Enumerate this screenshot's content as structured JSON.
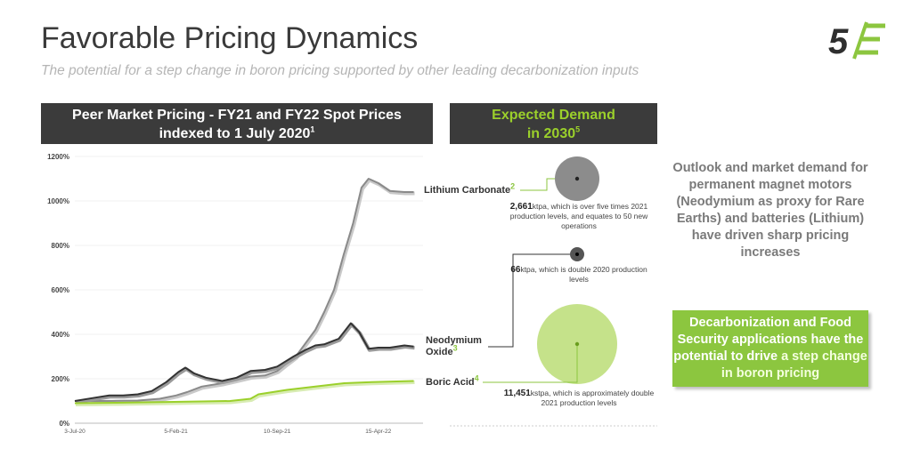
{
  "page": {
    "title": "Favorable Pricing Dynamics",
    "subtitle": "The potential for a step change in boron pricing supported by other leading decarbonization inputs",
    "logo_text": "5E"
  },
  "colors": {
    "accent_green": "#8cc63f",
    "header_bg": "#3b3b3b",
    "lithium": "#8a8a8a",
    "neodymium": "#333333",
    "boric": "#9bd02b"
  },
  "chart_header": {
    "line1": "Peer Market Pricing - FY21 and FY22 Spot Prices",
    "line2": "indexed to 1 July 2020",
    "sup": "1"
  },
  "demand_header": {
    "line1": "Expected Demand",
    "line2": "in 2030",
    "sup": "5"
  },
  "chart_data": {
    "type": "line",
    "ylim": [
      0,
      1200
    ],
    "yticks": [
      "0%",
      "200%",
      "400%",
      "600%",
      "800%",
      "1000%",
      "1200%"
    ],
    "xticks": [
      "3-Jul-20",
      "5-Feb-21",
      "10-Sep-21",
      "15-Apr-22"
    ],
    "series": [
      {
        "name": "Lithium Carbonate",
        "sup": "2",
        "x": [
          "2020-07-03",
          "2020-08-15",
          "2020-10-01",
          "2020-11-15",
          "2021-01-01",
          "2021-02-05",
          "2021-03-01",
          "2021-04-01",
          "2021-05-15",
          "2021-06-15",
          "2021-07-15",
          "2021-08-15",
          "2021-09-10",
          "2021-10-01",
          "2021-10-20",
          "2021-11-10",
          "2021-12-01",
          "2021-12-20",
          "2022-01-10",
          "2022-01-31",
          "2022-02-20",
          "2022-03-10",
          "2022-03-25",
          "2022-04-15",
          "2022-05-10",
          "2022-06-10",
          "2022-06-30"
        ],
        "values": [
          100,
          100,
          101,
          102,
          110,
          125,
          140,
          165,
          180,
          195,
          210,
          215,
          235,
          270,
          300,
          360,
          420,
          500,
          600,
          760,
          900,
          1060,
          1100,
          1080,
          1045,
          1040,
          1040
        ]
      },
      {
        "name": "Neodymium Oxide",
        "sup": "3",
        "x": [
          "2020-07-03",
          "2020-08-15",
          "2020-09-15",
          "2020-10-15",
          "2020-11-15",
          "2020-12-15",
          "2021-01-15",
          "2021-02-10",
          "2021-02-25",
          "2021-03-15",
          "2021-04-10",
          "2021-05-15",
          "2021-06-15",
          "2021-07-15",
          "2021-08-15",
          "2021-09-10",
          "2021-10-15",
          "2021-11-10",
          "2021-12-01",
          "2021-12-20",
          "2022-01-20",
          "2022-02-15",
          "2022-03-05",
          "2022-03-25",
          "2022-04-15",
          "2022-05-10",
          "2022-06-10",
          "2022-06-30"
        ],
        "values": [
          100,
          115,
          125,
          125,
          130,
          145,
          185,
          230,
          250,
          225,
          205,
          190,
          205,
          235,
          240,
          255,
          300,
          330,
          350,
          355,
          380,
          450,
          410,
          335,
          340,
          340,
          350,
          345
        ]
      },
      {
        "name": "Boric Acid",
        "sup": "4",
        "x": [
          "2020-07-03",
          "2020-10-01",
          "2021-01-01",
          "2021-04-01",
          "2021-06-01",
          "2021-07-15",
          "2021-08-01",
          "2021-10-01",
          "2021-12-01",
          "2022-02-01",
          "2022-04-01",
          "2022-06-30"
        ],
        "values": [
          90,
          92,
          95,
          98,
          100,
          110,
          130,
          150,
          165,
          180,
          185,
          190
        ]
      }
    ]
  },
  "demand": [
    {
      "value": "2,661",
      "unit": "ktpa",
      "text": ", which is over five times 2021 production levels, and equates to 50 new operations"
    },
    {
      "value": "66",
      "unit": "ktpa",
      "text": ", which is double 2020 production levels"
    },
    {
      "value": "11,451",
      "unit": "kstpa",
      "text": ", which is approximately double 2021 production levels"
    }
  ],
  "outlook_text": "Outlook and market demand for permanent magnet motors (Neodymium as proxy for Rare Earths) and batteries (Lithium) have driven sharp pricing increases",
  "callout": {
    "text_before": "Decarbonization and Food Security applications have the potential to drive ",
    "highlight": "a step change in boron pricing"
  }
}
